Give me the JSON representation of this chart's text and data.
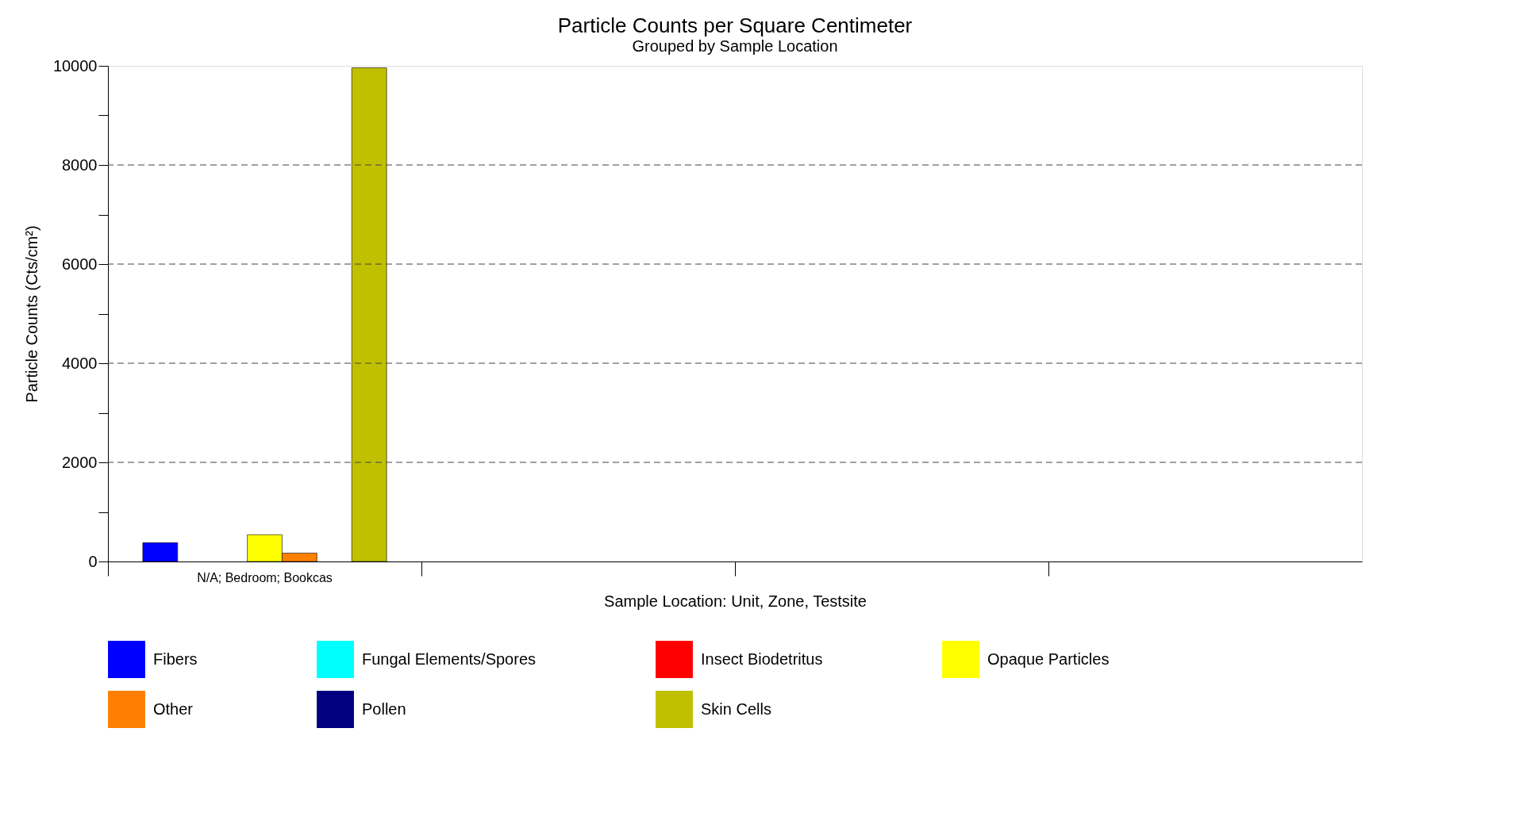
{
  "chart_data": {
    "type": "bar",
    "title": "Particle Counts per Square Centimeter",
    "subtitle": "Grouped by Sample Location",
    "xlabel": "Sample Location: Unit, Zone, Testsite",
    "ylabel": "Particle Counts (Cts/cm²)",
    "categories": [
      "N/A; Bedroom; Bookcas",
      null,
      null,
      null
    ],
    "series": [
      {
        "name": "Fibers",
        "color": "#0000ff",
        "values": [
          380,
          null,
          null,
          null
        ]
      },
      {
        "name": "Fungal Elements/Spores",
        "color": "#00ffff",
        "values": [
          null,
          null,
          null,
          null
        ]
      },
      {
        "name": "Insect Biodetritus",
        "color": "#ff0000",
        "values": [
          null,
          null,
          null,
          null
        ]
      },
      {
        "name": "Opaque Particles",
        "color": "#ffff00",
        "values": [
          540,
          null,
          null,
          null
        ]
      },
      {
        "name": "Other",
        "color": "#ff8000",
        "values": [
          170,
          null,
          null,
          null
        ]
      },
      {
        "name": "Pollen",
        "color": "#000080",
        "values": [
          null,
          null,
          null,
          null
        ]
      },
      {
        "name": "Skin Cells",
        "color": "#c0c000",
        "values": [
          9960,
          null,
          null,
          null
        ]
      }
    ],
    "ylim": [
      0,
      10000
    ],
    "yticks": [
      0,
      {
        "value": 1000,
        "label": null
      },
      2000,
      {
        "value": 3000,
        "label": null
      },
      4000,
      {
        "value": 5000,
        "label": null
      },
      6000,
      {
        "value": 7000,
        "label": null
      },
      8000,
      {
        "value": 9000,
        "label": null
      },
      10000
    ],
    "grid": "y",
    "legend": "bottom"
  }
}
